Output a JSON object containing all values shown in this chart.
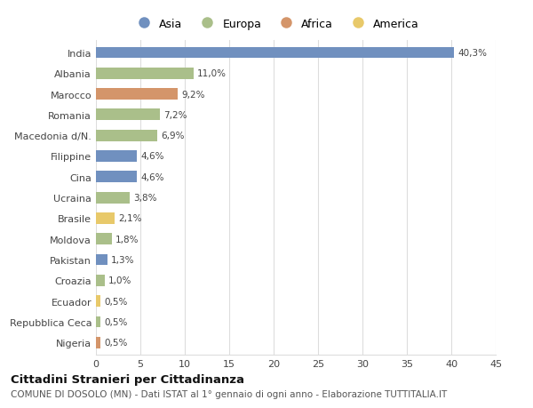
{
  "categories": [
    "India",
    "Albania",
    "Marocco",
    "Romania",
    "Macedonia d/N.",
    "Filippine",
    "Cina",
    "Ucraina",
    "Brasile",
    "Moldova",
    "Pakistan",
    "Croazia",
    "Ecuador",
    "Repubblica Ceca",
    "Nigeria"
  ],
  "values": [
    40.3,
    11.0,
    9.2,
    7.2,
    6.9,
    4.6,
    4.6,
    3.8,
    2.1,
    1.8,
    1.3,
    1.0,
    0.5,
    0.5,
    0.5
  ],
  "labels": [
    "40,3%",
    "11,0%",
    "9,2%",
    "7,2%",
    "6,9%",
    "4,6%",
    "4,6%",
    "3,8%",
    "2,1%",
    "1,8%",
    "1,3%",
    "1,0%",
    "0,5%",
    "0,5%",
    "0,5%"
  ],
  "continents": [
    "Asia",
    "Europa",
    "Africa",
    "Europa",
    "Europa",
    "Asia",
    "Asia",
    "Europa",
    "America",
    "Europa",
    "Asia",
    "Europa",
    "America",
    "Europa",
    "Africa"
  ],
  "colors": {
    "Asia": "#7090bf",
    "Europa": "#aabf8a",
    "Africa": "#d4956a",
    "America": "#e8c96a"
  },
  "legend_order": [
    "Asia",
    "Europa",
    "Africa",
    "America"
  ],
  "title": "Cittadini Stranieri per Cittadinanza",
  "subtitle": "COMUNE DI DOSOLO (MN) - Dati ISTAT al 1° gennaio di ogni anno - Elaborazione TUTTITALIA.IT",
  "xlim": [
    0,
    45
  ],
  "xticks": [
    0,
    5,
    10,
    15,
    20,
    25,
    30,
    35,
    40,
    45
  ],
  "bg_color": "#ffffff",
  "grid_color": "#dddddd",
  "bar_height": 0.55
}
